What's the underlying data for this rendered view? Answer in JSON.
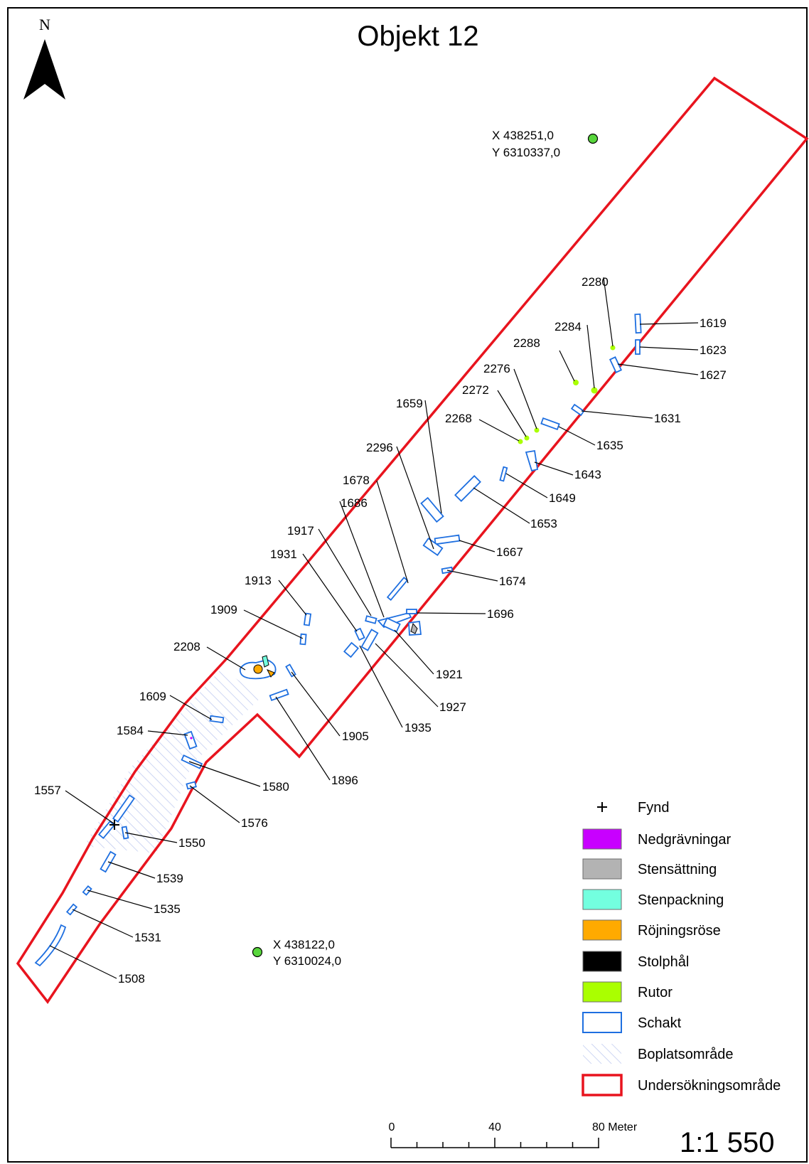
{
  "map": {
    "title": "Objekt 12",
    "north_label": "N",
    "coords": [
      {
        "x": "X 438251,0",
        "y": "Y 6310337,0"
      },
      {
        "x": "X 438122,0",
        "y": "Y 6310024,0"
      }
    ],
    "feature_labels": [
      "2280",
      "1619",
      "2284",
      "1623",
      "2288",
      "1627",
      "2276",
      "2272",
      "1659",
      "1631",
      "2268",
      "1635",
      "2296",
      "1643",
      "1678",
      "1649",
      "1686",
      "1653",
      "1917",
      "1931",
      "1667",
      "1913",
      "1674",
      "1909",
      "1696",
      "2208",
      "1921",
      "1927",
      "1609",
      "1905",
      "1935",
      "1584",
      "1896",
      "1580",
      "1557",
      "1576",
      "1550",
      "1539",
      "1535",
      "1531",
      "1508"
    ],
    "legend": [
      {
        "label": "Fynd",
        "symbol": "cross",
        "color": "#000000"
      },
      {
        "label": "Nedgrävningar",
        "symbol": "box",
        "color": "#c800ff"
      },
      {
        "label": "Stensättning",
        "symbol": "box",
        "color": "#b3b3b3"
      },
      {
        "label": "Stenpackning",
        "symbol": "box",
        "color": "#73ffdf"
      },
      {
        "label": "Röjningsröse",
        "symbol": "box",
        "color": "#ffaa00"
      },
      {
        "label": "Stolphål",
        "symbol": "box",
        "color": "#000000"
      },
      {
        "label": "Rutor",
        "symbol": "box",
        "color": "#aaff00"
      },
      {
        "label": "Schakt",
        "symbol": "outline",
        "color": "#1e6fe0"
      },
      {
        "label": "Boplatsområde",
        "symbol": "hatch",
        "color": "#c5cff0"
      },
      {
        "label": "Undersökningsområde",
        "symbol": "outline-thick",
        "color": "#e8141e"
      }
    ],
    "scale": {
      "ticks": [
        "0",
        "40",
        "80 Meter"
      ],
      "ratio": "1:1 550"
    }
  }
}
